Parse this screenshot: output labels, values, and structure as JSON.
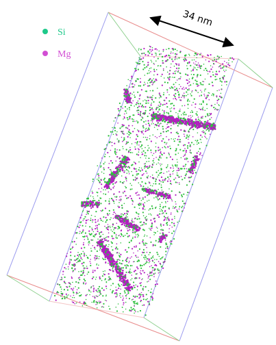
{
  "legend": {
    "items": [
      {
        "label": "Si",
        "color": "#1ec98a"
      },
      {
        "label": "Mg",
        "color": "#d24fd4"
      }
    ]
  },
  "scale_bar": {
    "label": "34 nm"
  },
  "colors": {
    "si": "#2fbf3e",
    "mg": "#b21fc0",
    "edge_blue": "#8f8fe8",
    "edge_red": "#e47a7a",
    "edge_green": "#8ed08e"
  }
}
